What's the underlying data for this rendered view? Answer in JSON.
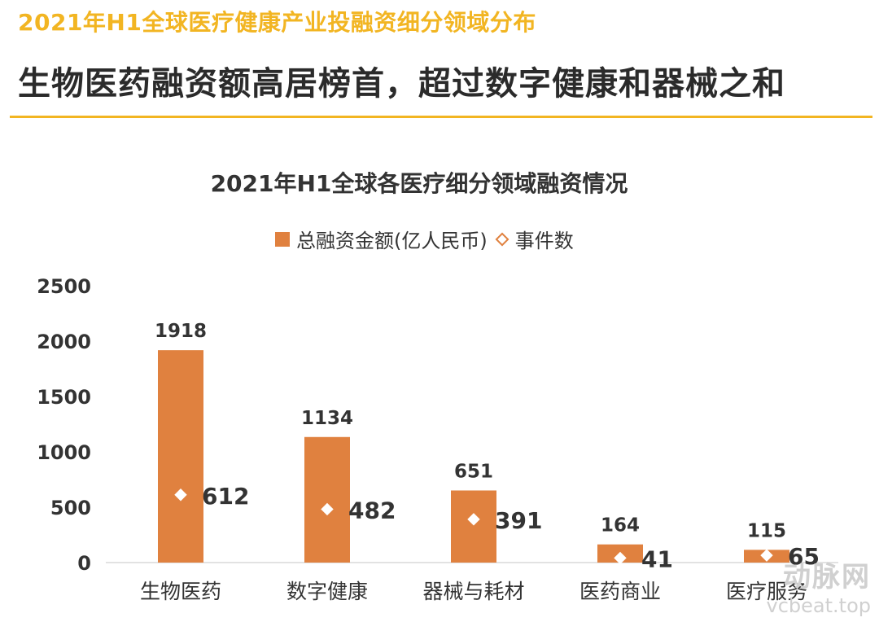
{
  "header": {
    "subtitle": "2021年H1全球医疗健康产业投融资细分领域分布",
    "headline": "生物医药融资额高居榜首，超过数字健康和器械之和"
  },
  "colors": {
    "accent": "#f2b522",
    "bar": "#e0813f"
  },
  "chart_data": {
    "type": "bar",
    "title": "2021年H1全球各医疗细分领域融资情况",
    "categories": [
      "生物医药",
      "数字健康",
      "器械与耗材",
      "医药商业",
      "医疗服务"
    ],
    "series": [
      {
        "name": "总融资金额(亿人民币)",
        "type": "bar",
        "values": [
          1918,
          1134,
          651,
          164,
          115
        ]
      },
      {
        "name": "事件数",
        "type": "scatter",
        "marker": "diamond",
        "values": [
          612,
          482,
          391,
          41,
          65
        ]
      }
    ],
    "ylim": [
      0,
      2500
    ],
    "yticks": [
      0,
      500,
      1000,
      1500,
      2000,
      2500
    ],
    "legend_position": "top"
  },
  "watermark": {
    "brand": "动脉网",
    "site": "vcbeat.top"
  }
}
